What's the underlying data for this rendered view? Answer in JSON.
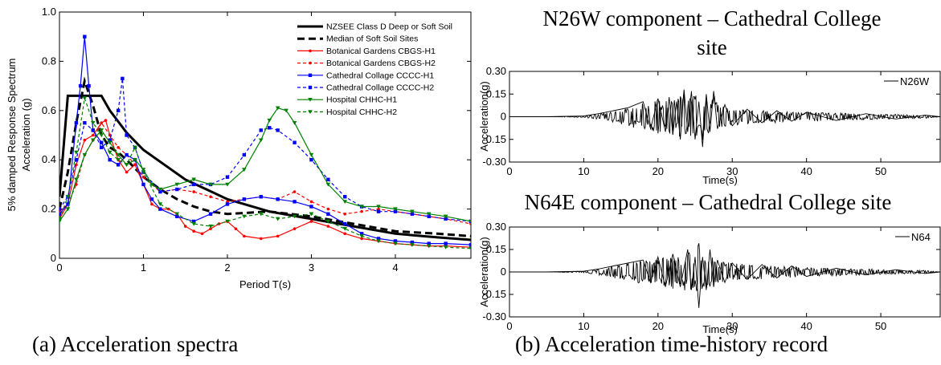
{
  "captions": {
    "a": "(a)  Acceleration spectra",
    "b": "(b)  Acceleration time-history record"
  },
  "chart_data": [
    {
      "type": "line",
      "panel": "a",
      "xlabel": "Period T(s)",
      "ylabel_lines": [
        "5% damped Response Spectrum",
        "Acceleration (g)"
      ],
      "xlim": [
        0,
        4.9
      ],
      "ylim": [
        0,
        1.0
      ],
      "xticks": [
        0,
        1,
        2,
        3,
        4
      ],
      "yticks": [
        0,
        0.2,
        0.4,
        0.6,
        0.8,
        1.0
      ],
      "ytick_labels": [
        "0",
        "0.2",
        "0.4",
        "0.6",
        "0.8",
        "1.0"
      ],
      "legend_position": "top-right",
      "series": [
        {
          "name": "NZSEE Class D Deep or Soft Soil",
          "color": "#000000",
          "style": "solid-thick",
          "marker": "none",
          "x": [
            0,
            0.1,
            0.5,
            0.6,
            0.8,
            1.0,
            1.5,
            2.0,
            2.5,
            3.0,
            3.5,
            4.0,
            4.5,
            4.9
          ],
          "y": [
            0.25,
            0.66,
            0.66,
            0.6,
            0.51,
            0.44,
            0.32,
            0.24,
            0.19,
            0.16,
            0.13,
            0.1,
            0.085,
            0.075
          ]
        },
        {
          "name": "Median of Soft Soil Sites",
          "color": "#000000",
          "style": "dashed-thick",
          "marker": "none",
          "x": [
            0,
            0.1,
            0.2,
            0.3,
            0.4,
            0.5,
            0.6,
            0.7,
            0.8,
            1.0,
            1.2,
            1.4,
            1.6,
            1.8,
            2.0,
            2.5,
            3.0,
            3.5,
            4.0,
            4.5,
            4.9
          ],
          "y": [
            0.2,
            0.35,
            0.55,
            0.72,
            0.62,
            0.5,
            0.45,
            0.43,
            0.4,
            0.33,
            0.28,
            0.24,
            0.21,
            0.19,
            0.18,
            0.19,
            0.17,
            0.14,
            0.11,
            0.1,
            0.09
          ]
        },
        {
          "name": "Botanical Gardens CBGS-H1",
          "color": "#ff0000",
          "style": "solid",
          "marker": "dot",
          "x": [
            0,
            0.1,
            0.2,
            0.3,
            0.4,
            0.5,
            0.55,
            0.6,
            0.7,
            0.8,
            0.9,
            1.0,
            1.1,
            1.2,
            1.3,
            1.4,
            1.5,
            1.6,
            1.7,
            1.8,
            1.9,
            2.0,
            2.1,
            2.2,
            2.4,
            2.6,
            2.8,
            3.0,
            3.2,
            3.4,
            3.6,
            3.8,
            4.0,
            4.2,
            4.4,
            4.6,
            4.9
          ],
          "y": [
            0.16,
            0.22,
            0.38,
            0.48,
            0.5,
            0.55,
            0.56,
            0.5,
            0.4,
            0.35,
            0.38,
            0.3,
            0.22,
            0.2,
            0.2,
            0.18,
            0.13,
            0.11,
            0.1,
            0.12,
            0.14,
            0.15,
            0.12,
            0.09,
            0.08,
            0.09,
            0.12,
            0.15,
            0.13,
            0.1,
            0.08,
            0.07,
            0.06,
            0.055,
            0.05,
            0.05,
            0.045
          ]
        },
        {
          "name": "Botanical Gardens CBGS-H2",
          "color": "#ff0000",
          "style": "dashed",
          "marker": "dot",
          "x": [
            0,
            0.1,
            0.2,
            0.3,
            0.4,
            0.5,
            0.6,
            0.7,
            0.8,
            0.9,
            1.0,
            1.2,
            1.4,
            1.6,
            1.8,
            2.0,
            2.2,
            2.4,
            2.6,
            2.8,
            3.0,
            3.2,
            3.4,
            3.6,
            3.8,
            4.0,
            4.2,
            4.4,
            4.6,
            4.9
          ],
          "y": [
            0.19,
            0.22,
            0.3,
            0.42,
            0.48,
            0.55,
            0.5,
            0.45,
            0.42,
            0.38,
            0.33,
            0.27,
            0.28,
            0.27,
            0.25,
            0.23,
            0.24,
            0.25,
            0.24,
            0.27,
            0.23,
            0.2,
            0.18,
            0.19,
            0.2,
            0.19,
            0.18,
            0.17,
            0.16,
            0.14
          ]
        },
        {
          "name": "Cathedral Collage CCCC-H1",
          "color": "#0000ff",
          "style": "solid",
          "marker": "square",
          "x": [
            0,
            0.1,
            0.2,
            0.25,
            0.3,
            0.35,
            0.4,
            0.5,
            0.6,
            0.7,
            0.8,
            0.9,
            1.0,
            1.1,
            1.2,
            1.4,
            1.6,
            1.8,
            2.0,
            2.2,
            2.4,
            2.6,
            2.8,
            3.0,
            3.2,
            3.4,
            3.6,
            3.8,
            4.0,
            4.2,
            4.4,
            4.6,
            4.9
          ],
          "y": [
            0.18,
            0.22,
            0.55,
            0.7,
            0.9,
            0.7,
            0.52,
            0.47,
            0.4,
            0.38,
            0.42,
            0.4,
            0.3,
            0.24,
            0.2,
            0.17,
            0.15,
            0.18,
            0.22,
            0.24,
            0.25,
            0.24,
            0.23,
            0.21,
            0.18,
            0.14,
            0.1,
            0.08,
            0.07,
            0.065,
            0.06,
            0.06,
            0.055
          ]
        },
        {
          "name": "Cathedral Collage CCCC-H2",
          "color": "#0000ff",
          "style": "dashed",
          "marker": "square",
          "x": [
            0,
            0.1,
            0.2,
            0.3,
            0.4,
            0.5,
            0.6,
            0.7,
            0.75,
            0.8,
            0.9,
            1.0,
            1.2,
            1.4,
            1.6,
            1.8,
            2.0,
            2.2,
            2.4,
            2.5,
            2.6,
            2.8,
            3.0,
            3.2,
            3.4,
            3.6,
            3.8,
            4.0,
            4.2,
            4.4,
            4.6,
            4.9
          ],
          "y": [
            0.2,
            0.25,
            0.4,
            0.55,
            0.52,
            0.45,
            0.48,
            0.6,
            0.73,
            0.5,
            0.45,
            0.35,
            0.27,
            0.28,
            0.3,
            0.3,
            0.33,
            0.42,
            0.52,
            0.53,
            0.52,
            0.47,
            0.4,
            0.32,
            0.25,
            0.21,
            0.19,
            0.19,
            0.18,
            0.17,
            0.16,
            0.15
          ]
        },
        {
          "name": "Hospital CHHC-H1",
          "color": "#008000",
          "style": "solid",
          "marker": "triangle",
          "x": [
            0,
            0.1,
            0.2,
            0.3,
            0.4,
            0.5,
            0.6,
            0.7,
            0.8,
            0.9,
            1.0,
            1.1,
            1.2,
            1.4,
            1.6,
            1.8,
            2.0,
            2.2,
            2.4,
            2.5,
            2.6,
            2.7,
            2.8,
            3.0,
            3.2,
            3.4,
            3.6,
            3.8,
            4.0,
            4.2,
            4.4,
            4.6,
            4.9
          ],
          "y": [
            0.15,
            0.2,
            0.32,
            0.42,
            0.48,
            0.52,
            0.47,
            0.42,
            0.38,
            0.4,
            0.36,
            0.3,
            0.28,
            0.3,
            0.32,
            0.3,
            0.3,
            0.36,
            0.48,
            0.56,
            0.61,
            0.6,
            0.55,
            0.42,
            0.3,
            0.23,
            0.21,
            0.21,
            0.2,
            0.19,
            0.18,
            0.17,
            0.15
          ]
        },
        {
          "name": "Hospital CHHC-H2",
          "color": "#008000",
          "style": "dashed",
          "marker": "triangle",
          "x": [
            0,
            0.1,
            0.2,
            0.3,
            0.4,
            0.5,
            0.6,
            0.7,
            0.8,
            0.9,
            1.0,
            1.2,
            1.4,
            1.6,
            1.8,
            2.0,
            2.2,
            2.4,
            2.6,
            2.8,
            3.0,
            3.2,
            3.4,
            3.6,
            3.8,
            4.0,
            4.2,
            4.4,
            4.6,
            4.9
          ],
          "y": [
            0.16,
            0.25,
            0.43,
            0.65,
            0.55,
            0.5,
            0.43,
            0.4,
            0.38,
            0.45,
            0.35,
            0.22,
            0.18,
            0.14,
            0.13,
            0.15,
            0.17,
            0.18,
            0.16,
            0.17,
            0.18,
            0.15,
            0.12,
            0.09,
            0.07,
            0.06,
            0.055,
            0.05,
            0.045,
            0.04
          ]
        }
      ]
    },
    {
      "type": "line",
      "panel": "b-top",
      "title_lines": [
        "N26W component – Cathedral College",
        "site"
      ],
      "xlabel": "Time(s)",
      "ylabel": "Acceleration(g)",
      "xlim": [
        0,
        58
      ],
      "ylim": [
        -0.3,
        0.3
      ],
      "xticks": [
        0,
        10,
        20,
        30,
        40,
        50
      ],
      "yticks": [
        -0.3,
        -0.15,
        0,
        0.15,
        0.3
      ],
      "ytick_labels": [
        "-0.30",
        "-0.15",
        "0",
        "0.15",
        "0.30"
      ],
      "legend": "N26W",
      "series": [
        {
          "name": "N26W",
          "color": "#000000",
          "x": [
            0,
            5,
            10,
            12,
            14,
            16,
            18,
            19,
            20,
            21,
            21.5,
            22,
            22.5,
            23,
            23.5,
            24,
            24.5,
            25,
            25.5,
            26,
            26.5,
            27,
            27.5,
            28,
            29,
            30,
            32,
            34,
            36,
            38,
            40,
            44,
            48,
            52,
            56,
            58
          ],
          "y": [
            0,
            0,
            0.005,
            0.02,
            0.04,
            0.06,
            0.1,
            -0.08,
            0.12,
            -0.1,
            0.13,
            -0.12,
            0.1,
            -0.15,
            0.18,
            -0.1,
            0.17,
            -0.15,
            0.1,
            -0.2,
            0.15,
            -0.1,
            0.17,
            -0.08,
            0.08,
            -0.06,
            0.05,
            -0.04,
            0.04,
            -0.03,
            0.03,
            -0.025,
            0.02,
            -0.015,
            0.01,
            0
          ]
        }
      ]
    },
    {
      "type": "line",
      "panel": "b-bottom",
      "title_lines": [
        "N64E component – Cathedral College site"
      ],
      "xlabel": "Time(s)",
      "ylabel": "Acceleration(g)",
      "xlim": [
        0,
        58
      ],
      "ylim": [
        -0.3,
        0.3
      ],
      "xticks": [
        0,
        10,
        20,
        30,
        40,
        50
      ],
      "yticks": [
        -0.3,
        -0.15,
        0,
        0.15,
        0.3
      ],
      "ytick_labels": [
        "-0.30",
        "-0.15",
        "0",
        "0.15",
        "0.30"
      ],
      "legend": "N64",
      "series": [
        {
          "name": "N64",
          "color": "#000000",
          "x": [
            0,
            5,
            10,
            12,
            14,
            16,
            18,
            19,
            20,
            21,
            22,
            23,
            24,
            24.5,
            25,
            25.5,
            26,
            26.5,
            27,
            27.5,
            28,
            29,
            30,
            32,
            34,
            36,
            38,
            40,
            44,
            48,
            52,
            56,
            58
          ],
          "y": [
            0,
            0,
            0.005,
            0.02,
            0.04,
            0.06,
            0.08,
            -0.07,
            0.1,
            -0.1,
            0.12,
            -0.1,
            0.15,
            -0.12,
            0.1,
            -0.24,
            0.1,
            -0.12,
            0.15,
            -0.1,
            0.08,
            -0.07,
            0.06,
            -0.05,
            0.05,
            -0.04,
            0.04,
            -0.03,
            0.025,
            -0.02,
            0.015,
            -0.01,
            0
          ]
        }
      ]
    }
  ]
}
